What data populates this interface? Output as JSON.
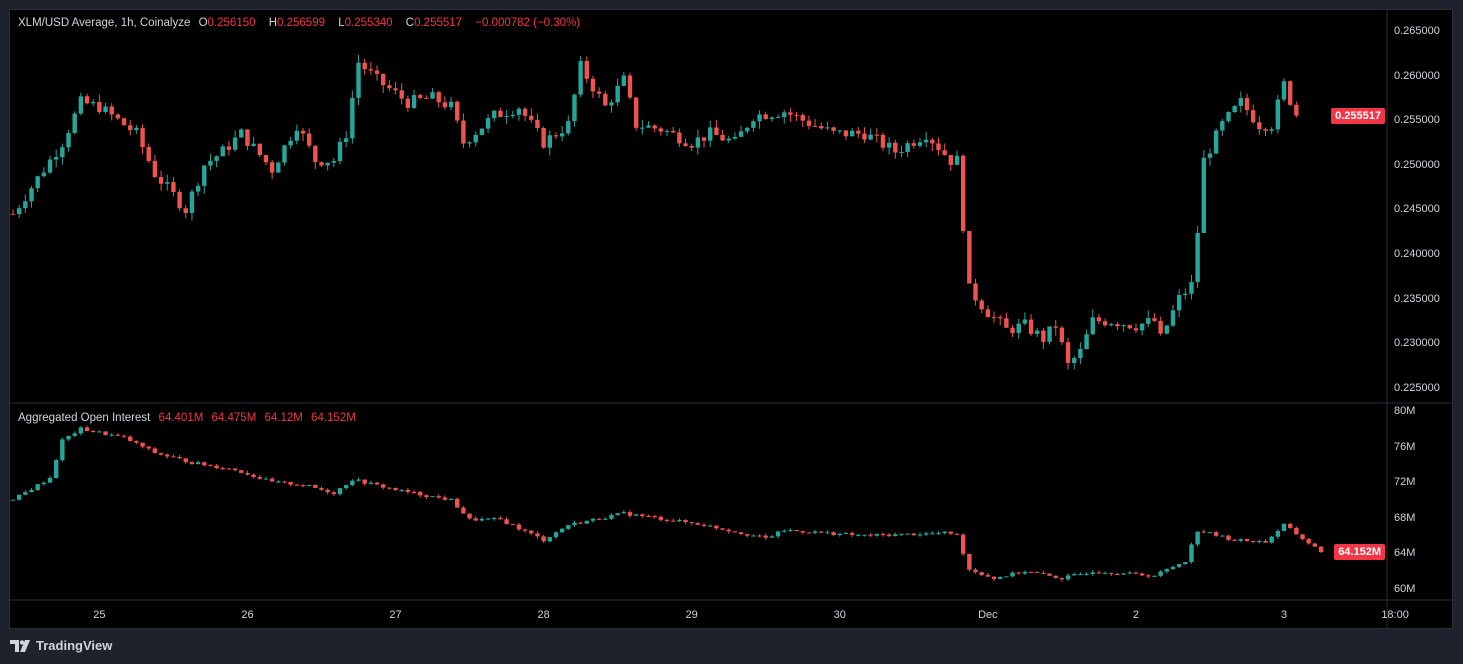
{
  "legend": {
    "title": "XLM/USD Average, 1h, Coinalyze",
    "o_label": "O",
    "o": "0.256150",
    "h_label": "H",
    "h": "0.256599",
    "l_label": "L",
    "l": "0.255340",
    "c_label": "C",
    "c": "0.255517",
    "change": "−0.000782 (−0.30%)"
  },
  "oi_legend": {
    "title": "Aggregated Open Interest",
    "values": [
      "64.401M",
      "64.475M",
      "64.12M",
      "64.152M"
    ]
  },
  "brand": "TradingView",
  "colors": {
    "up": "#26a69a",
    "down": "#ef5350",
    "bg": "#000000",
    "tag": "#f23645"
  },
  "chart_data": [
    {
      "type": "candlestick",
      "title": "XLM/USD Average, 1h, Coinalyze",
      "interval": "1h",
      "ylim": [
        0.2235,
        0.2665
      ],
      "yticks": [
        "0.265000",
        "0.260000",
        "0.255000",
        "0.250000",
        "0.245000",
        "0.240000",
        "0.235000",
        "0.230000",
        "0.225000"
      ],
      "ytick_values": [
        0.265,
        0.26,
        0.255,
        0.25,
        0.245,
        0.24,
        0.235,
        0.23,
        0.225
      ],
      "last_price": "0.255517",
      "last_value": 0.255517,
      "close_keypoints_hour_index_value": [
        [
          0,
          0.2445
        ],
        [
          8,
          0.2525
        ],
        [
          11,
          0.257
        ],
        [
          14,
          0.2565
        ],
        [
          20,
          0.2535
        ],
        [
          23,
          0.249
        ],
        [
          28,
          0.245
        ],
        [
          31,
          0.25
        ],
        [
          34,
          0.2515
        ],
        [
          37,
          0.2535
        ],
        [
          42,
          0.2495
        ],
        [
          46,
          0.2545
        ],
        [
          49,
          0.2505
        ],
        [
          52,
          0.2505
        ],
        [
          54,
          0.2535
        ],
        [
          56,
          0.2615
        ],
        [
          59,
          0.2595
        ],
        [
          64,
          0.257
        ],
        [
          68,
          0.2575
        ],
        [
          71,
          0.2565
        ],
        [
          73,
          0.2525
        ],
        [
          78,
          0.2555
        ],
        [
          82,
          0.2565
        ],
        [
          86,
          0.2525
        ],
        [
          90,
          0.2545
        ],
        [
          92,
          0.261
        ],
        [
          96,
          0.2565
        ],
        [
          99,
          0.2595
        ],
        [
          101,
          0.2545
        ],
        [
          105,
          0.254
        ],
        [
          110,
          0.2525
        ],
        [
          113,
          0.2535
        ],
        [
          117,
          0.2525
        ],
        [
          120,
          0.2555
        ],
        [
          125,
          0.256
        ],
        [
          128,
          0.255
        ],
        [
          133,
          0.2535
        ],
        [
          138,
          0.2535
        ],
        [
          143,
          0.2515
        ],
        [
          148,
          0.2535
        ],
        [
          152,
          0.2505
        ],
        [
          153,
          0.2505
        ],
        [
          155,
          0.236
        ],
        [
          158,
          0.2335
        ],
        [
          161,
          0.2315
        ],
        [
          164,
          0.232
        ],
        [
          167,
          0.2305
        ],
        [
          169,
          0.232
        ],
        [
          171,
          0.2275
        ],
        [
          173,
          0.229
        ],
        [
          175,
          0.2325
        ],
        [
          178,
          0.2325
        ],
        [
          182,
          0.232
        ],
        [
          185,
          0.2325
        ],
        [
          186,
          0.2305
        ],
        [
          189,
          0.235
        ],
        [
          191,
          0.2365
        ],
        [
          192,
          0.2425
        ],
        [
          193,
          0.2505
        ],
        [
          196,
          0.2545
        ],
        [
          199,
          0.257
        ],
        [
          202,
          0.2545
        ],
        [
          204,
          0.2545
        ],
        [
          206,
          0.259
        ],
        [
          208,
          0.2555
        ]
      ],
      "xticks": [
        "25",
        "26",
        "27",
        "28",
        "29",
        "30",
        "Dec",
        "2",
        "3",
        "18:00"
      ],
      "xtick_hour_index": [
        14,
        38,
        62,
        86,
        110,
        134,
        158,
        182,
        206,
        224
      ]
    },
    {
      "type": "candlestick",
      "title": "Aggregated Open Interest",
      "ylim": [
        59,
        81
      ],
      "yticks": [
        "80M",
        "76M",
        "72M",
        "68M",
        "64M",
        "60M"
      ],
      "ytick_values": [
        80,
        76,
        72,
        68,
        64,
        60
      ],
      "last_value_label": "64.152M",
      "last_value": 64.152,
      "close_keypoints_hour_index_value": [
        [
          0,
          70
        ],
        [
          6,
          72.5
        ],
        [
          8,
          76.7
        ],
        [
          11,
          78
        ],
        [
          18,
          77
        ],
        [
          23,
          75.3
        ],
        [
          29,
          74.2
        ],
        [
          36,
          73.4
        ],
        [
          42,
          72
        ],
        [
          47,
          71.7
        ],
        [
          52,
          70.8
        ],
        [
          55,
          72.3
        ],
        [
          63,
          71
        ],
        [
          71,
          70
        ],
        [
          74,
          67.8
        ],
        [
          79,
          67.8
        ],
        [
          86,
          65.5
        ],
        [
          90,
          67.2
        ],
        [
          99,
          68.5
        ],
        [
          112,
          67.2
        ],
        [
          122,
          65.7
        ],
        [
          125,
          66.6
        ],
        [
          138,
          66
        ],
        [
          152,
          66.3
        ],
        [
          153,
          66
        ],
        [
          155,
          62.2
        ],
        [
          159,
          61.2
        ],
        [
          164,
          62
        ],
        [
          170,
          61.2
        ],
        [
          175,
          62
        ],
        [
          185,
          61.5
        ],
        [
          190,
          63.2
        ],
        [
          192,
          66.6
        ],
        [
          198,
          65.5
        ],
        [
          203,
          65.3
        ],
        [
          206,
          67.2
        ],
        [
          212,
          64.152
        ]
      ]
    }
  ]
}
